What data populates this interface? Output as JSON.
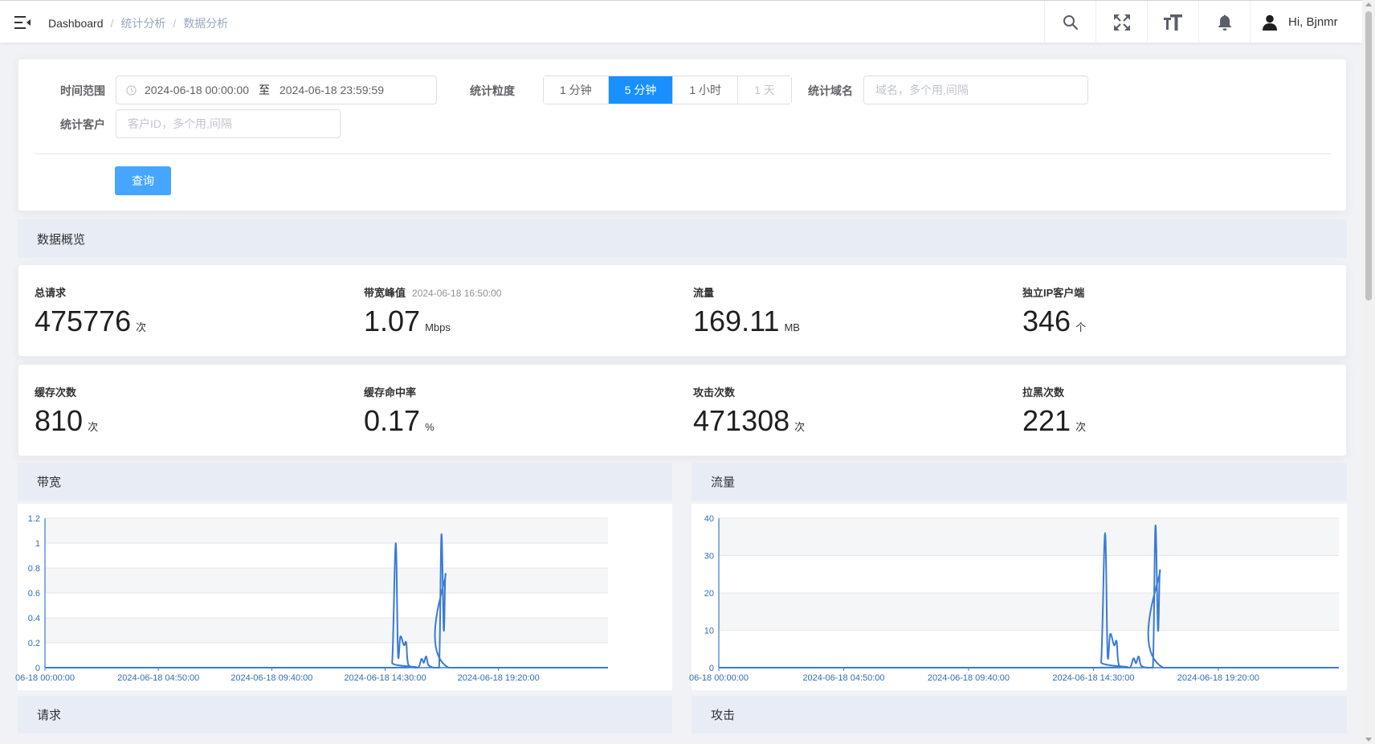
{
  "breadcrumb": [
    "Dashboard",
    "统计分析",
    "数据分析"
  ],
  "user": {
    "greeting": "Hi, Bjnmr"
  },
  "icons": {
    "menu": "hamburger-icon",
    "search": "search-icon",
    "fullscreen": "fullscreen-icon",
    "font_size": "font-size-icon",
    "bell": "bell-icon",
    "user": "user-icon",
    "clock": "clock-icon"
  },
  "filter": {
    "time_range_label": "时间范围",
    "start": "2024-06-18 00:00:00",
    "range_sep": "至",
    "end": "2024-06-18 23:59:59",
    "granularity_label": "统计粒度",
    "granularity_options": [
      "1 分钟",
      "5 分钟",
      "1 小时",
      "1 天"
    ],
    "granularity_selected": "5 分钟",
    "domain_label": "统计域名",
    "domain_placeholder": "域名，多个用,间隔",
    "customer_label": "统计客户",
    "customer_placeholder": "客户ID，多个用,间隔",
    "query_button": "查询"
  },
  "overview_title": "数据概览",
  "stats_row1": [
    {
      "title": "总请求",
      "value": "475776",
      "unit": "次"
    },
    {
      "title": "带宽峰值",
      "sub": "2024-06-18 16:50:00",
      "value": "1.07",
      "unit": "Mbps"
    },
    {
      "title": "流量",
      "value": "169.11",
      "unit": "MB"
    },
    {
      "title": "独立IP客户端",
      "value": "346",
      "unit": "个"
    }
  ],
  "stats_row2": [
    {
      "title": "缓存次数",
      "value": "810",
      "unit": "次"
    },
    {
      "title": "缓存命中率",
      "value": "0.17",
      "unit": "%"
    },
    {
      "title": "攻击次数",
      "value": "471308",
      "unit": "次"
    },
    {
      "title": "拉黑次数",
      "value": "221",
      "unit": "次"
    }
  ],
  "section_titles": {
    "bandwidth": "带宽",
    "traffic": "流量",
    "requests": "请求",
    "attacks": "攻击"
  },
  "colors": {
    "accent": "#1890ff",
    "line": "#3a7bd5",
    "axis": "#3a7bd5",
    "tick_text": "#2f6fb0"
  },
  "chart_data": [
    {
      "type": "line",
      "name": "带宽",
      "x_ticks": [
        "06-18 00:00:00",
        "2024-06-18 04:50:00",
        "2024-06-18 09:40:00",
        "2024-06-18 14:30:00",
        "2024-06-18 19:20:00"
      ],
      "y_ticks": [
        "0",
        "0.2",
        "0.4",
        "0.6",
        "0.8",
        "1",
        "1.2"
      ],
      "ylim": [
        0,
        1.2
      ],
      "x_range_hours": [
        0,
        24
      ],
      "grid": true,
      "points": [
        [
          0,
          0
        ],
        [
          14.6,
          0
        ],
        [
          14.8,
          0.04
        ],
        [
          14.95,
          1.0
        ],
        [
          15.05,
          0.1
        ],
        [
          15.15,
          0.25
        ],
        [
          15.3,
          0.18
        ],
        [
          15.4,
          0.2
        ],
        [
          15.5,
          0.02
        ],
        [
          15.9,
          0
        ],
        [
          16.05,
          0.07
        ],
        [
          16.15,
          0.04
        ],
        [
          16.25,
          0.09
        ],
        [
          16.35,
          0.02
        ],
        [
          16.6,
          0
        ],
        [
          16.8,
          0
        ],
        [
          16.9,
          1.07
        ],
        [
          17.0,
          0.3
        ],
        [
          17.08,
          0.75
        ],
        [
          17.2,
          0
        ],
        [
          24,
          0
        ]
      ]
    },
    {
      "type": "line",
      "name": "流量",
      "x_ticks": [
        "06-18 00:00:00",
        "2024-06-18 04:50:00",
        "2024-06-18 09:40:00",
        "2024-06-18 14:30:00",
        "2024-06-18 19:20:00"
      ],
      "y_ticks": [
        "0",
        "10",
        "20",
        "30",
        "40"
      ],
      "ylim": [
        0,
        40
      ],
      "x_range_hours": [
        0,
        24
      ],
      "grid": true,
      "points": [
        [
          0,
          0
        ],
        [
          14.6,
          0
        ],
        [
          14.8,
          1.5
        ],
        [
          14.95,
          36
        ],
        [
          15.05,
          3
        ],
        [
          15.15,
          9
        ],
        [
          15.3,
          6
        ],
        [
          15.4,
          7
        ],
        [
          15.5,
          0.5
        ],
        [
          15.9,
          0
        ],
        [
          16.05,
          2.5
        ],
        [
          16.15,
          1.2
        ],
        [
          16.25,
          3
        ],
        [
          16.35,
          0.5
        ],
        [
          16.6,
          0
        ],
        [
          16.8,
          0
        ],
        [
          16.9,
          38
        ],
        [
          17.0,
          10
        ],
        [
          17.08,
          26
        ],
        [
          17.2,
          0
        ],
        [
          24,
          0
        ]
      ]
    }
  ]
}
